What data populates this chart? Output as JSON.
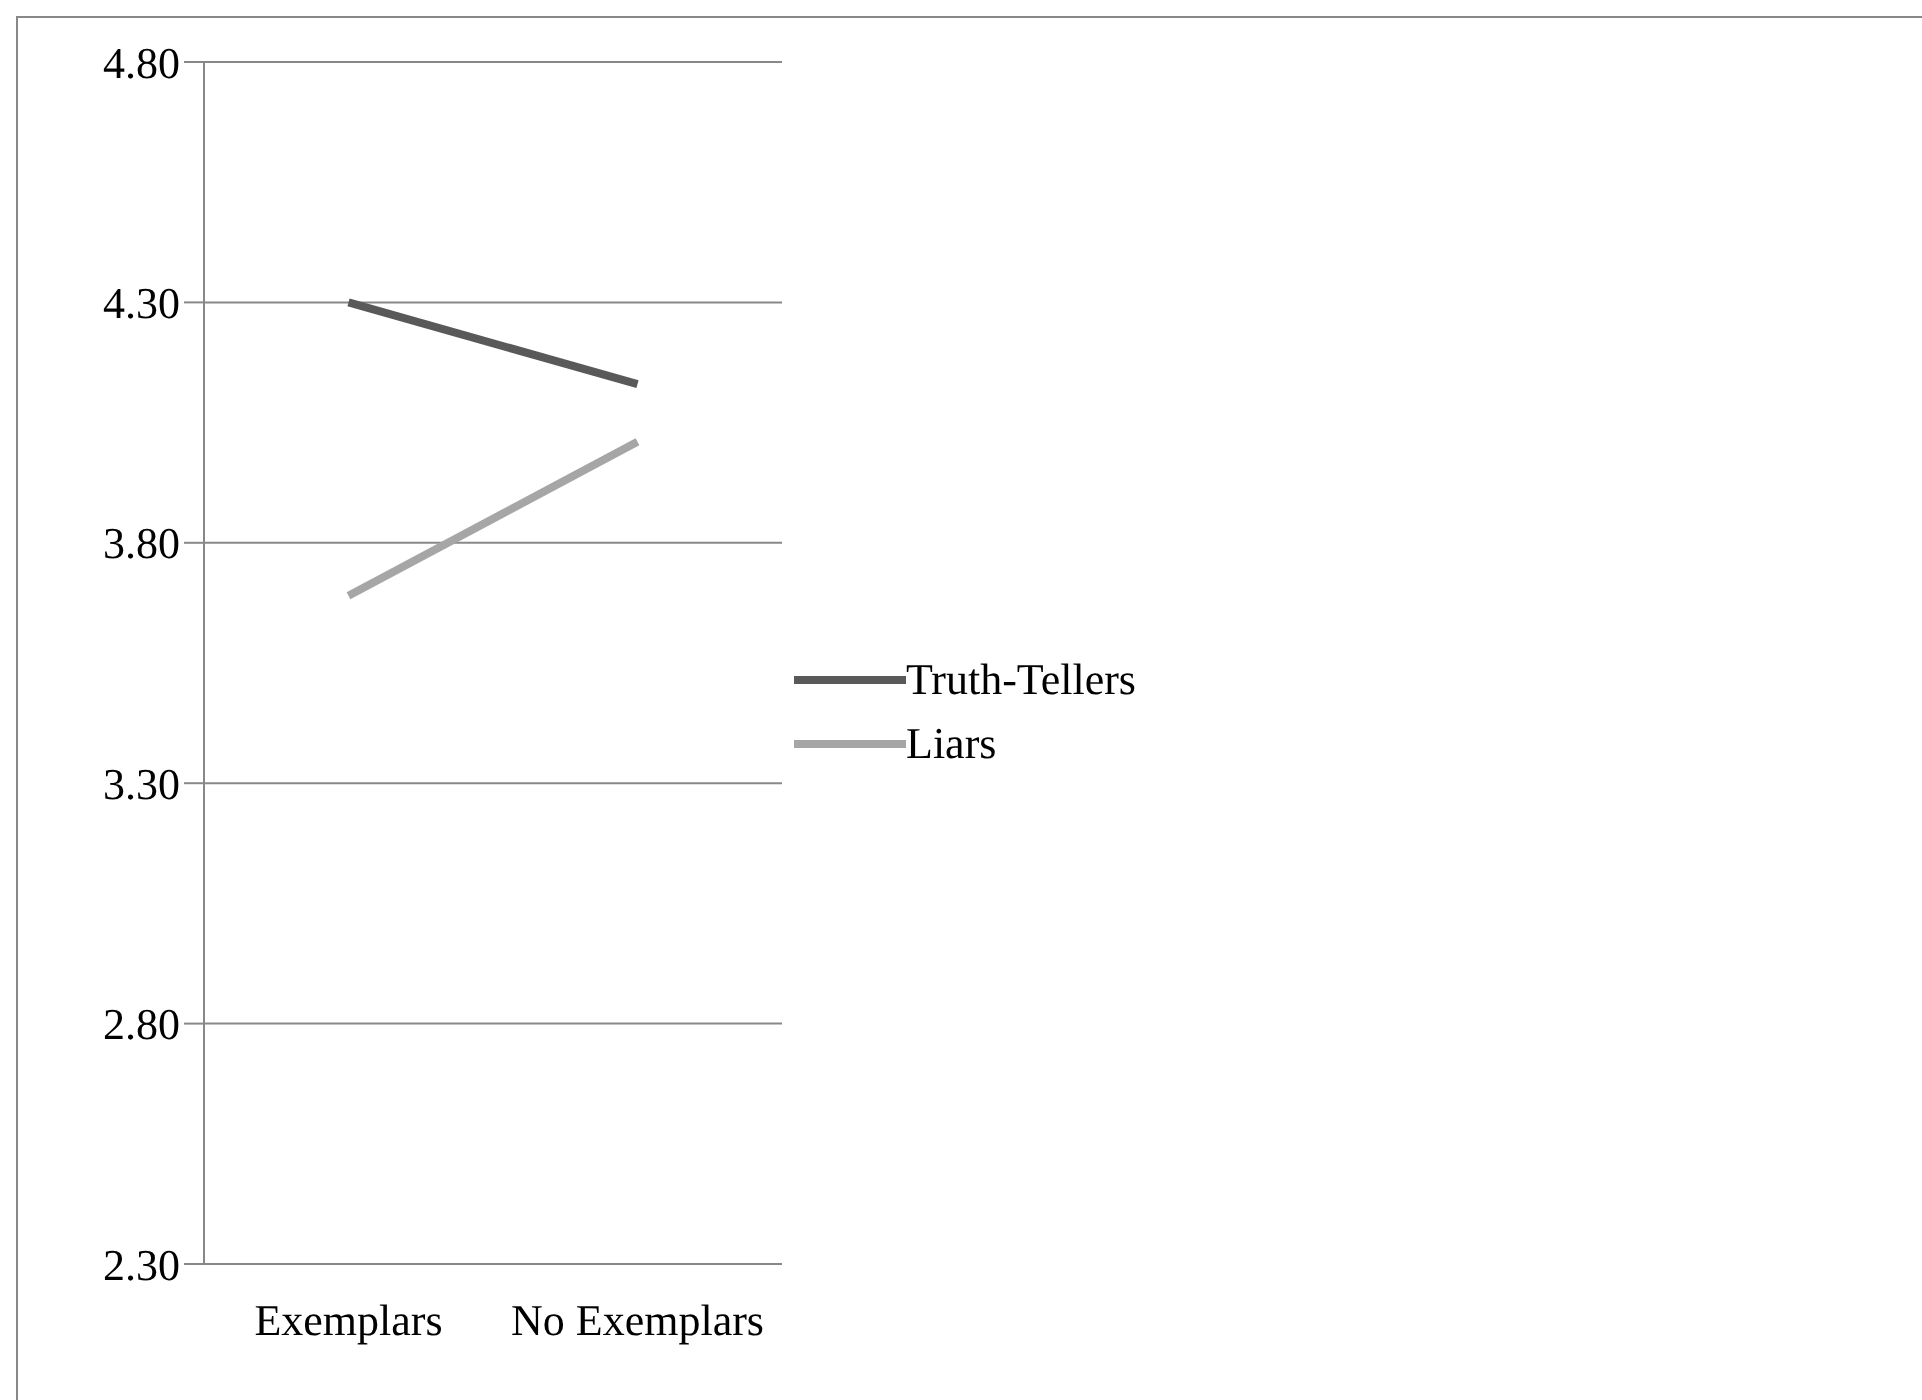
{
  "chart_data": {
    "type": "line",
    "categories": [
      "Exemplars",
      "No Exemplars"
    ],
    "series": [
      {
        "name": "Truth-Tellers",
        "color": "#595959",
        "values": [
          4.3,
          4.13
        ]
      },
      {
        "name": "Liars",
        "color": "#a6a6a6",
        "values": [
          3.69,
          4.01
        ]
      }
    ],
    "ylim": [
      2.3,
      4.8
    ],
    "yticks": [
      {
        "value": 2.3,
        "label": "2.30"
      },
      {
        "value": 2.8,
        "label": "2.80"
      },
      {
        "value": 3.3,
        "label": "3.30"
      },
      {
        "value": 3.8,
        "label": "3.80"
      },
      {
        "value": 4.3,
        "label": "4.30"
      },
      {
        "value": 4.8,
        "label": "4.80"
      }
    ],
    "grid": "y",
    "legend": "right",
    "marker": "none",
    "line_style": "solid"
  }
}
